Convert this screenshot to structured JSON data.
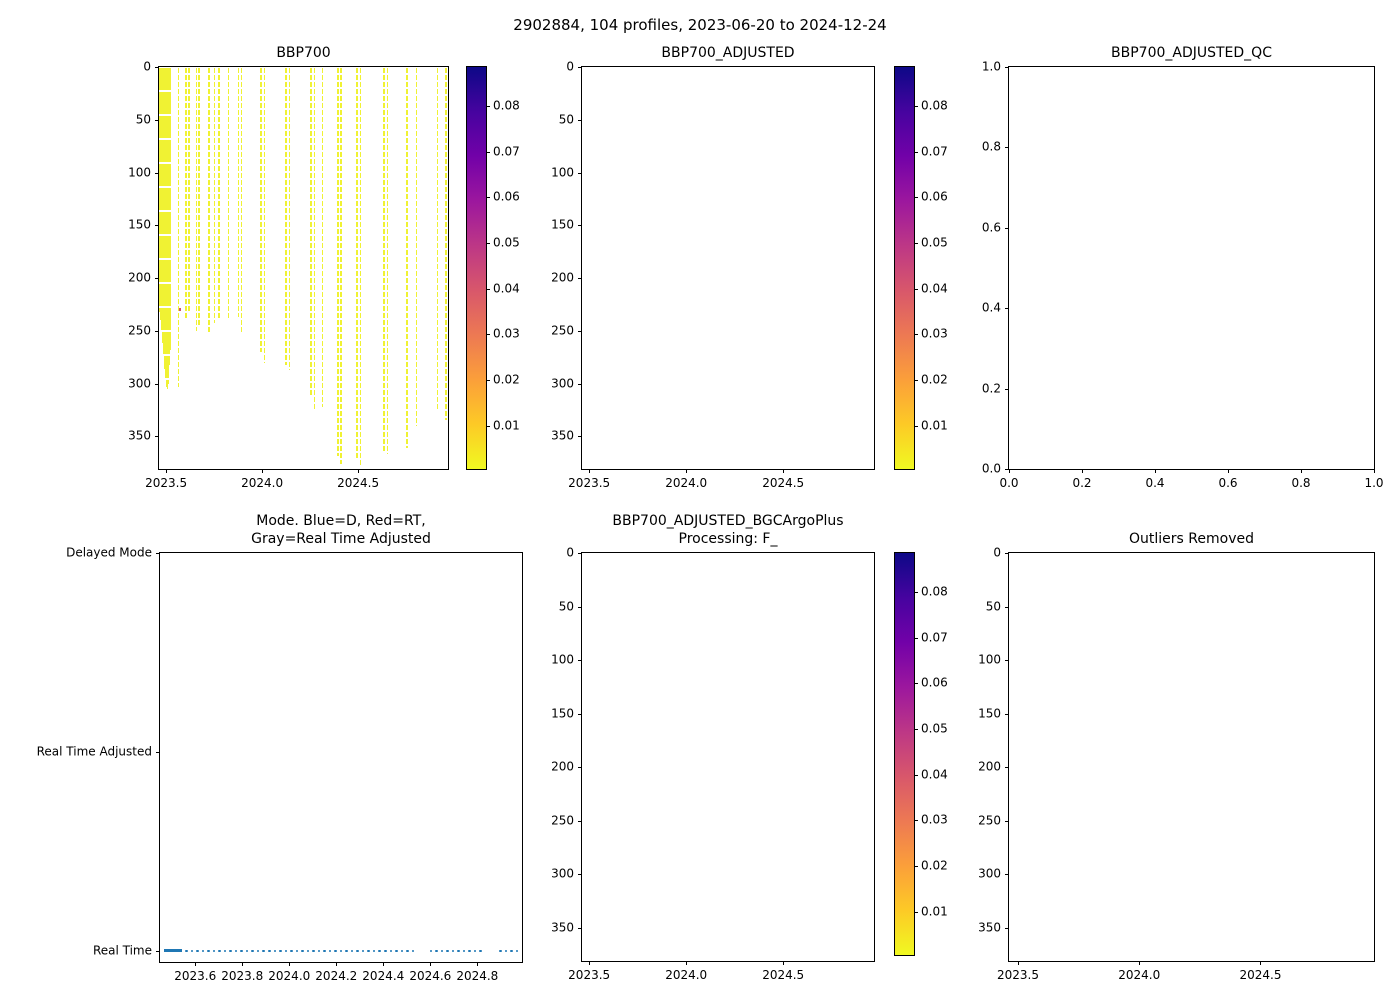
{
  "suptitle": "2902884, 104 profiles, 2023-06-20 to 2024-12-24",
  "colorbar": {
    "clim": [
      0.0005,
      0.0885
    ],
    "ticks": [
      {
        "v": 0.08,
        "label": "0.08"
      },
      {
        "v": 0.07,
        "label": "0.07"
      },
      {
        "v": 0.06,
        "label": "0.06"
      },
      {
        "v": 0.05,
        "label": "0.05"
      },
      {
        "v": 0.04,
        "label": "0.04"
      },
      {
        "v": 0.03,
        "label": "0.03"
      },
      {
        "v": 0.02,
        "label": "0.02"
      },
      {
        "v": 0.01,
        "label": "0.01"
      }
    ],
    "colormap": "plasma_r",
    "colors": [
      "#0d0887",
      "#46039f",
      "#7201a8",
      "#9c179e",
      "#bd3786",
      "#d8576b",
      "#ed7953",
      "#fb9f3a",
      "#fdca26",
      "#f0f921"
    ]
  },
  "chart_data": [
    {
      "id": "bbp700",
      "type": "scatter",
      "title": "BBP700",
      "xlim": [
        2023.463,
        2024.968
      ],
      "ylim": [
        0,
        381
      ],
      "x_ticks": [
        2023.5,
        2024.0,
        2024.5
      ],
      "x_tick_labels": [
        "2023.5",
        "2024.0",
        "2024.5"
      ],
      "y_ticks": [
        0,
        50,
        100,
        150,
        200,
        250,
        300,
        350
      ],
      "y_tick_labels": [
        "0",
        "50",
        "100",
        "150",
        "200",
        "250",
        "300",
        "350"
      ],
      "marker_color": "#f0f233",
      "band": {
        "x0": 2023.465,
        "x1": 2023.527,
        "depths": [
          232,
          240,
          250,
          262,
          274,
          286,
          296,
          303,
          305,
          300,
          292,
          282,
          268
        ]
      },
      "profiles": [
        {
          "x": 2023.56,
          "depth": 303
        },
        {
          "x": 2023.6,
          "depth": 240
        },
        {
          "x": 2023.615,
          "depth": 232
        },
        {
          "x": 2023.655,
          "depth": 250
        },
        {
          "x": 2023.668,
          "depth": 245
        },
        {
          "x": 2023.72,
          "depth": 252
        },
        {
          "x": 2023.748,
          "depth": 243
        },
        {
          "x": 2023.77,
          "depth": 240
        },
        {
          "x": 2023.82,
          "depth": 239
        },
        {
          "x": 2023.872,
          "depth": 237
        },
        {
          "x": 2023.888,
          "depth": 253
        },
        {
          "x": 2023.99,
          "depth": 270
        },
        {
          "x": 2024.008,
          "depth": 281
        },
        {
          "x": 2024.12,
          "depth": 282
        },
        {
          "x": 2024.138,
          "depth": 287
        },
        {
          "x": 2024.25,
          "depth": 311
        },
        {
          "x": 2024.268,
          "depth": 325
        },
        {
          "x": 2024.31,
          "depth": 322
        },
        {
          "x": 2024.39,
          "depth": 369
        },
        {
          "x": 2024.408,
          "depth": 376
        },
        {
          "x": 2024.49,
          "depth": 372
        },
        {
          "x": 2024.508,
          "depth": 377
        },
        {
          "x": 2024.63,
          "depth": 364
        },
        {
          "x": 2024.648,
          "depth": 367
        },
        {
          "x": 2024.75,
          "depth": 361
        },
        {
          "x": 2024.8,
          "depth": 340
        },
        {
          "x": 2024.91,
          "depth": 326
        },
        {
          "x": 2024.952,
          "depth": 335
        }
      ],
      "outlier_points": [
        {
          "x": 2023.565,
          "depth": 230,
          "color": "#cf5369"
        }
      ]
    },
    {
      "id": "bbp700_adjusted",
      "type": "scatter",
      "title": "BBP700_ADJUSTED",
      "xlim": [
        2023.463,
        2024.968
      ],
      "ylim": [
        0,
        381
      ],
      "x_ticks": [
        2023.5,
        2024.0,
        2024.5
      ],
      "x_tick_labels": [
        "2023.5",
        "2024.0",
        "2024.5"
      ],
      "y_ticks": [
        0,
        50,
        100,
        150,
        200,
        250,
        300,
        350
      ],
      "y_tick_labels": [
        "0",
        "50",
        "100",
        "150",
        "200",
        "250",
        "300",
        "350"
      ],
      "profiles": []
    },
    {
      "id": "bbp700_adjusted_qc",
      "type": "scatter",
      "title": "BBP700_ADJUSTED_QC",
      "xlim": [
        0.0,
        1.0
      ],
      "ylim": [
        1.0,
        0.0
      ],
      "x_ticks": [
        0.0,
        0.2,
        0.4,
        0.6,
        0.8,
        1.0
      ],
      "x_tick_labels": [
        "0.0",
        "0.2",
        "0.4",
        "0.6",
        "0.8",
        "1.0"
      ],
      "y_ticks": [
        1.0,
        0.8,
        0.6,
        0.4,
        0.2,
        0.0
      ],
      "y_tick_labels": [
        "1.0",
        "0.8",
        "0.6",
        "0.4",
        "0.2",
        "0.0"
      ],
      "profiles": []
    },
    {
      "id": "mode",
      "type": "scatter",
      "title": "Mode. Blue=D, Red=RT,\nGray=Real Time Adjusted",
      "xlim": [
        2023.45,
        2024.99
      ],
      "x_ticks": [
        2023.6,
        2023.8,
        2024.0,
        2024.2,
        2024.4,
        2024.6,
        2024.8
      ],
      "x_tick_labels": [
        "2023.6",
        "2023.8",
        "2024.0",
        "2024.2",
        "2024.4",
        "2024.6",
        "2024.8"
      ],
      "y_categories": [
        "Delayed Mode",
        "Real Time Adjusted",
        "Real Time"
      ],
      "y_category_pos": [
        0,
        48.7,
        97.3
      ],
      "series": [
        {
          "name": "Real Time",
          "color": "#1f77b4",
          "row": 2,
          "solid": [
            [
              2023.468,
              2023.545
            ]
          ],
          "runs": [
            [
              2023.557,
              2024.525
            ],
            [
              2024.597,
              2024.822
            ],
            [
              2024.893,
              2024.985
            ]
          ],
          "step": 0.0235
        }
      ]
    },
    {
      "id": "bgc_argo_plus",
      "type": "scatter",
      "title": "BBP700_ADJUSTED_BGCArgoPlus\nProcessing: F_",
      "xlim": [
        2023.463,
        2024.968
      ],
      "ylim": [
        0,
        381
      ],
      "x_ticks": [
        2023.5,
        2024.0,
        2024.5
      ],
      "x_tick_labels": [
        "2023.5",
        "2024.0",
        "2024.5"
      ],
      "y_ticks": [
        0,
        50,
        100,
        150,
        200,
        250,
        300,
        350
      ],
      "y_tick_labels": [
        "0",
        "50",
        "100",
        "150",
        "200",
        "250",
        "300",
        "350"
      ],
      "profiles": []
    },
    {
      "id": "outliers_removed",
      "type": "scatter",
      "title": "Outliers Removed",
      "xlim": [
        2023.463,
        2024.968
      ],
      "ylim": [
        0,
        381
      ],
      "x_ticks": [
        2023.5,
        2024.0,
        2024.5
      ],
      "x_tick_labels": [
        "2023.5",
        "2024.0",
        "2024.5"
      ],
      "y_ticks": [
        0,
        50,
        100,
        150,
        200,
        250,
        300,
        350
      ],
      "y_tick_labels": [
        "0",
        "50",
        "100",
        "150",
        "200",
        "250",
        "300",
        "350"
      ],
      "profiles": []
    }
  ]
}
